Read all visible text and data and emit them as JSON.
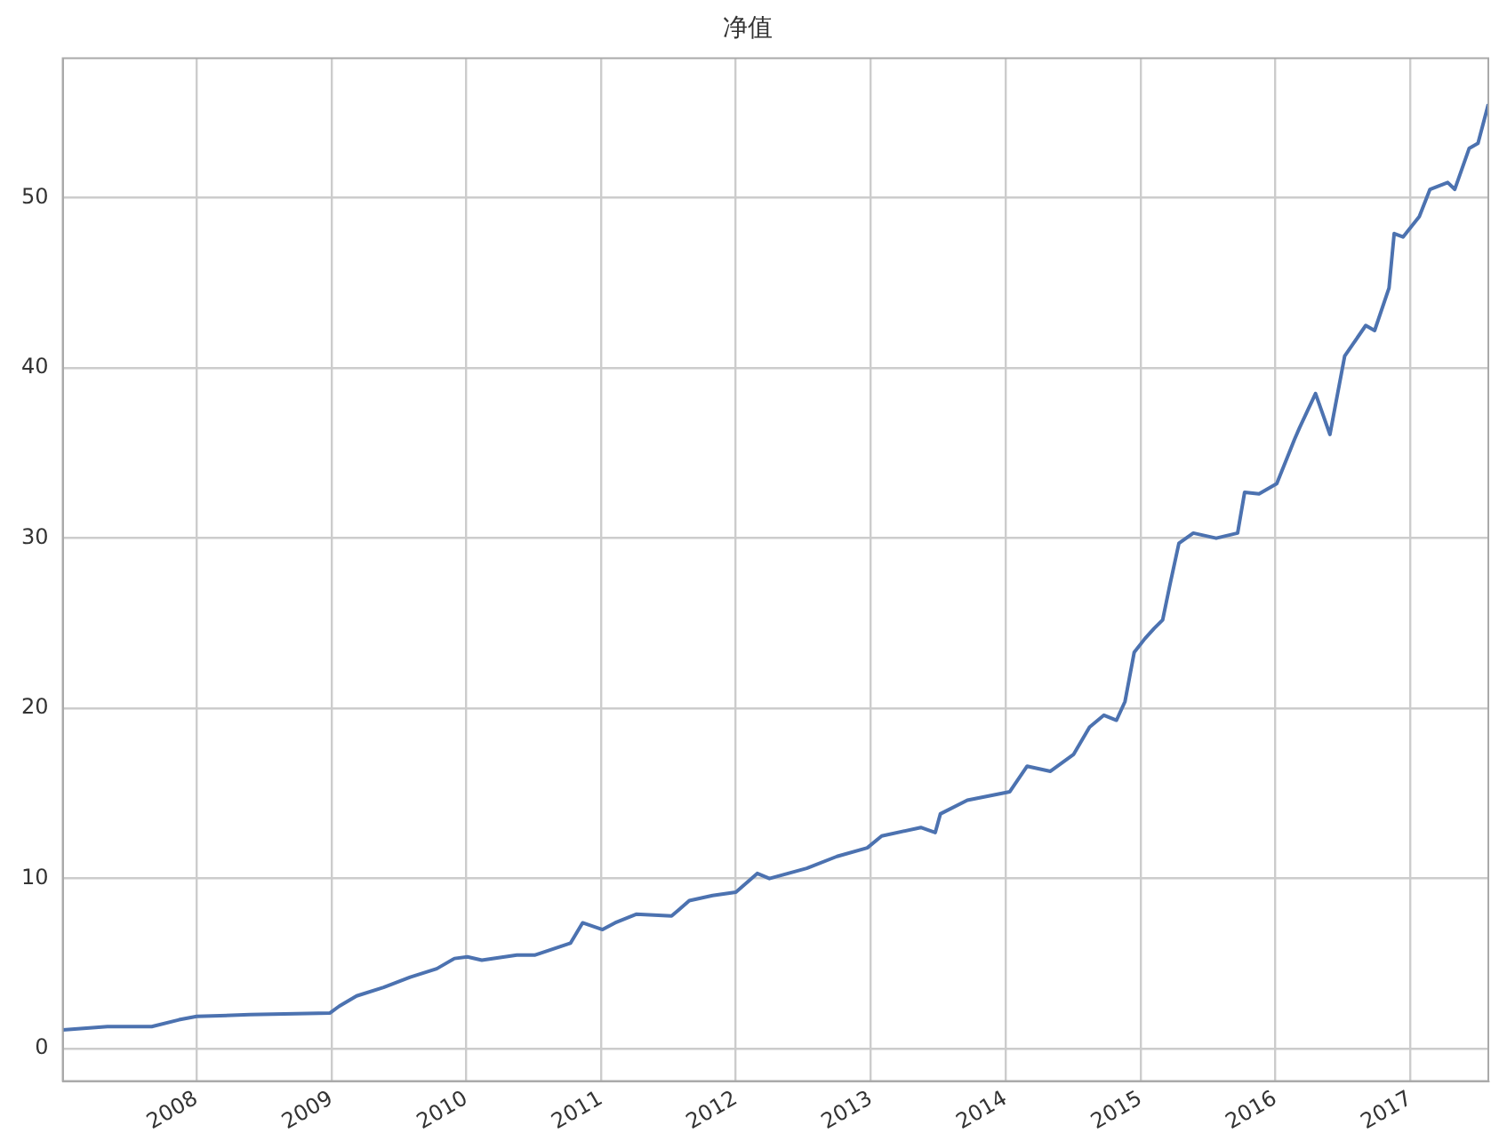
{
  "chart_data": {
    "type": "line",
    "title": "净值",
    "x": [
      "2007-01-04",
      "2007-05-05",
      "2007-09-02",
      "2007-11-15",
      "2008-01-02",
      "2008-05-25",
      "2008-12-28",
      "2009-01-22",
      "2009-03-10",
      "2009-05-22",
      "2009-08-02",
      "2009-10-13",
      "2009-11-30",
      "2010-01-04",
      "2010-02-12",
      "2010-05-18",
      "2010-07-05",
      "2010-10-10",
      "2010-11-12",
      "2011-01-05",
      "2011-02-08",
      "2011-04-06",
      "2011-07-11",
      "2011-08-28",
      "2011-10-30",
      "2012-01-01",
      "2012-02-28",
      "2012-04-01",
      "2012-07-11",
      "2012-10-01",
      "2012-12-22",
      "2013-01-30",
      "2013-05-16",
      "2013-06-24",
      "2013-07-08",
      "2013-09-19",
      "2014-01-12",
      "2014-02-28",
      "2014-05-02",
      "2014-07-04",
      "2014-08-16",
      "2014-09-24",
      "2014-10-28",
      "2014-11-20",
      "2014-12-15",
      "2015-01-13",
      "2015-02-07",
      "2015-03-02",
      "2015-03-22",
      "2015-04-15",
      "2015-05-24",
      "2015-07-25",
      "2015-09-21",
      "2015-10-10",
      "2015-11-18",
      "2016-01-05",
      "2016-02-22",
      "2016-03-07",
      "2016-04-19",
      "2016-05-28",
      "2016-07-07",
      "2016-09-02",
      "2016-09-26",
      "2016-11-04",
      "2016-11-18",
      "2016-12-12",
      "2017-01-25",
      "2017-02-23",
      "2017-04-12",
      "2017-05-01",
      "2017-06-09",
      "2017-07-03",
      "2017-07-31"
    ],
    "series": [
      {
        "color": "#4c72b0",
        "values": [
          1.1,
          1.3,
          1.3,
          1.7,
          1.9,
          2.0,
          2.1,
          2.5,
          3.1,
          3.6,
          4.2,
          4.7,
          5.3,
          5.4,
          5.2,
          5.5,
          5.5,
          6.2,
          7.4,
          7.0,
          7.4,
          7.9,
          7.8,
          8.7,
          9.0,
          9.2,
          10.3,
          10.0,
          10.6,
          11.3,
          11.8,
          12.5,
          13.0,
          12.7,
          13.8,
          14.6,
          15.1,
          16.6,
          16.3,
          17.3,
          18.9,
          19.6,
          19.3,
          20.4,
          23.3,
          24.1,
          24.7,
          25.2,
          27.3,
          29.7,
          30.3,
          30.0,
          30.3,
          32.7,
          32.6,
          33.2,
          35.8,
          36.5,
          38.5,
          36.1,
          40.7,
          42.5,
          42.2,
          44.7,
          47.9,
          47.7,
          48.9,
          50.5,
          50.9,
          50.5,
          52.9,
          53.2,
          55.5
        ]
      }
    ],
    "xlim": [
      "2007-01-04",
      "2017-07-31"
    ],
    "xticks": [
      "2008",
      "2009",
      "2010",
      "2011",
      "2012",
      "2013",
      "2014",
      "2015",
      "2016",
      "2017"
    ],
    "ylim": [
      -1.9,
      58.2
    ],
    "yticks": [
      0,
      10,
      20,
      30,
      40,
      50
    ],
    "grid": true,
    "legend": false,
    "line_style": "solid",
    "marker": "none"
  }
}
